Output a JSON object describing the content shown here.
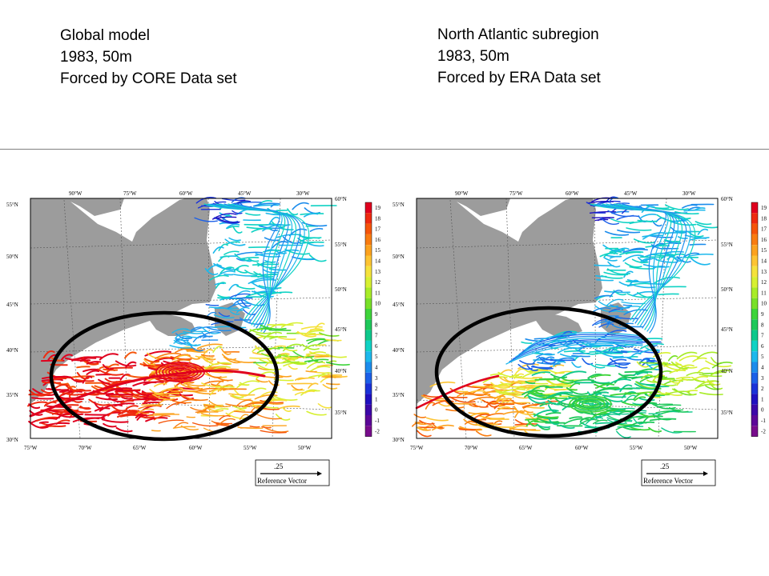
{
  "captions": {
    "left": [
      "Global model",
      "1983, 50m",
      "Forced by CORE Data set"
    ],
    "right": [
      "North Atlantic subregion",
      "1983, 50m",
      "Forced by ERA Data set"
    ]
  },
  "map": {
    "top_lon_labels": [
      "90°W",
      "75°W",
      "60°W",
      "45°W",
      "30°W"
    ],
    "bottom_lon_labels": [
      "75°W",
      "70°W",
      "65°W",
      "60°W",
      "55°W",
      "50°W"
    ],
    "left_lat_labels": [
      "55°N",
      "50°N",
      "45°N",
      "40°N",
      "35°N",
      "30°N"
    ],
    "right_lat_labels": [
      "60°N",
      "55°N",
      "50°N",
      "45°N",
      "40°N",
      "35°N"
    ]
  },
  "colorbar": {
    "labels": [
      "19",
      "18",
      "17",
      "16",
      "15",
      "14",
      "13",
      "12",
      "11",
      "10",
      "9",
      "8",
      "7",
      "6",
      "5",
      "4",
      "3",
      "2",
      "1",
      "0",
      "-1",
      "-2"
    ],
    "colors": [
      "#e0001e",
      "#ee2a10",
      "#f5550a",
      "#f97c10",
      "#fca21e",
      "#fdc432",
      "#f5e23c",
      "#d7f032",
      "#a8ec28",
      "#78e028",
      "#3ed43a",
      "#1ec85a",
      "#0ec88c",
      "#10d2c4",
      "#1cb8ec",
      "#1c8cec",
      "#1c60e8",
      "#1a32d8",
      "#2010c0",
      "#3c08a8",
      "#5c0898",
      "#780c8c"
    ]
  },
  "reference_vector": {
    "value": ".25",
    "label": "Reference Vector"
  },
  "colors": {
    "land": "#9c9c9c",
    "background": "#ffffff",
    "ellipse": "#000000"
  }
}
